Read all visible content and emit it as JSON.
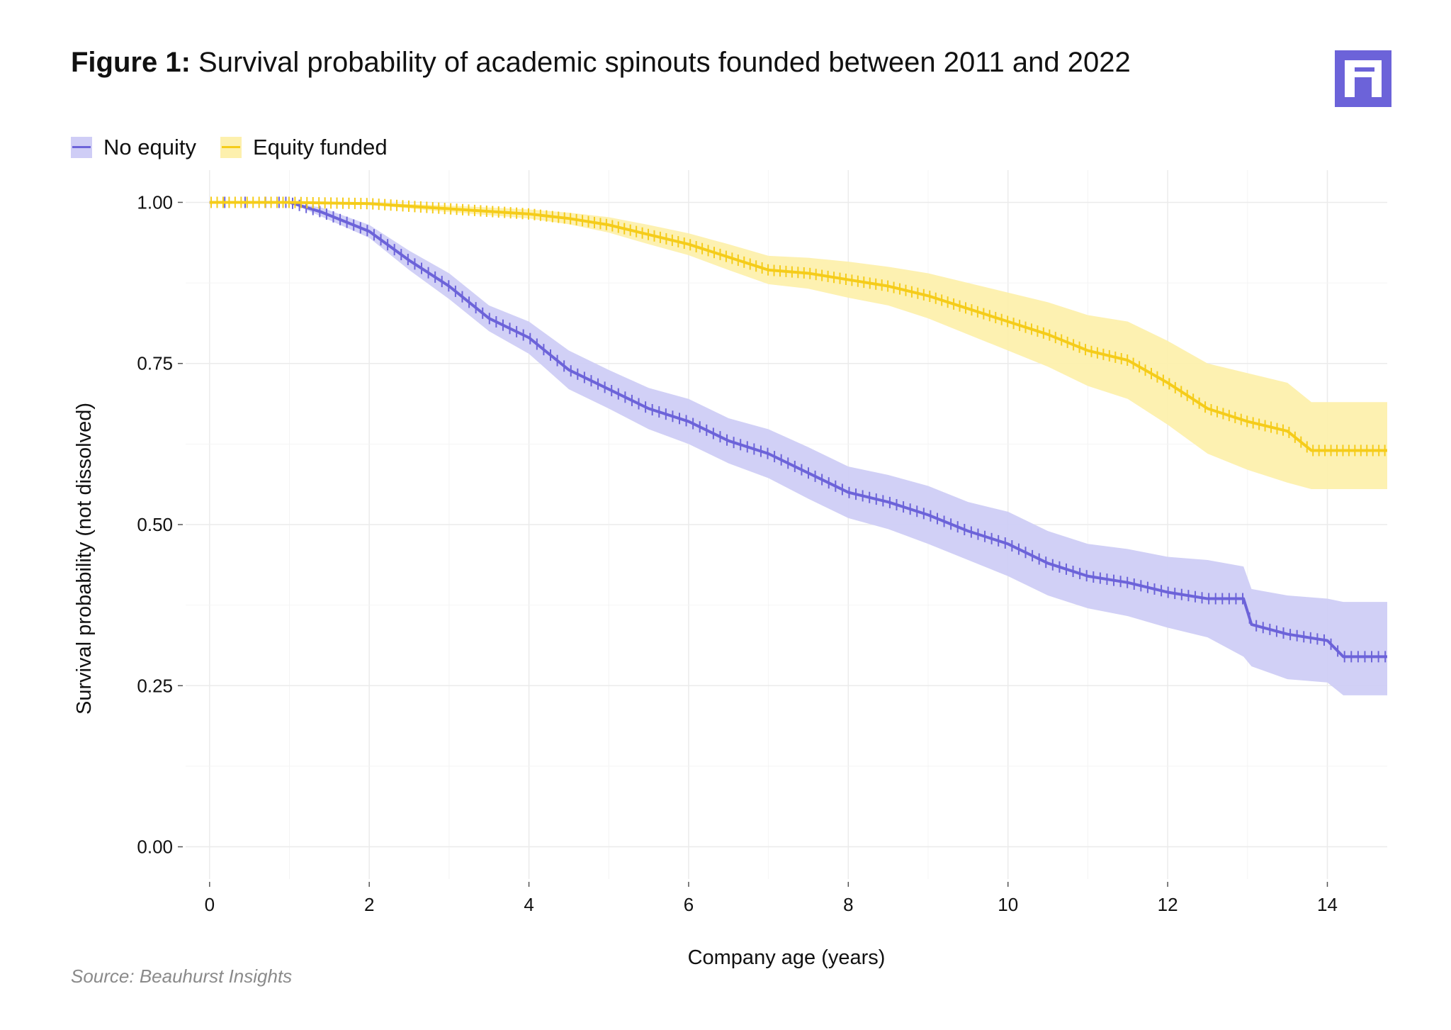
{
  "header": {
    "figure_label": "Figure 1:",
    "title": "Survival probability of academic spinouts founded between 2011 and 2022"
  },
  "logo": {
    "icon": "beauhurst-logo-icon",
    "color": "#6c63d9"
  },
  "source": "Source: Beauhurst Insights",
  "chart_data": {
    "type": "line",
    "title": "Survival probability of academic spinouts founded between 2011 and 2022",
    "xlabel": "Company age (years)",
    "ylabel": "Survival probability (not dissolved)",
    "xlim": [
      -0.3,
      14.75
    ],
    "ylim": [
      -0.05,
      1.05
    ],
    "x_ticks": [
      0,
      2,
      4,
      6,
      8,
      10,
      12,
      14
    ],
    "x_tick_labels": [
      "0",
      "2",
      "4",
      "6",
      "8",
      "10",
      "12",
      "14"
    ],
    "y_ticks": [
      0,
      0.25,
      0.5,
      0.75,
      1.0
    ],
    "y_tick_labels": [
      "0.00",
      "0.25",
      "0.50",
      "0.75",
      "1.00"
    ],
    "grid": true,
    "legend_position": "top-left",
    "series": [
      {
        "name": "No equity",
        "color": "#6c63d9",
        "band_color": "#cfcdf6",
        "x": [
          0,
          1.0,
          1.4,
          2.0,
          2.5,
          3.0,
          3.5,
          4.0,
          4.5,
          5.0,
          5.5,
          6.0,
          6.5,
          7.0,
          7.5,
          8.0,
          8.5,
          9.0,
          9.5,
          10.0,
          10.5,
          11.0,
          11.5,
          12.0,
          12.5,
          12.95,
          13.05,
          13.5,
          14.0,
          14.2,
          14.75
        ],
        "values": [
          1.0,
          1.0,
          0.985,
          0.955,
          0.91,
          0.87,
          0.82,
          0.79,
          0.74,
          0.71,
          0.68,
          0.66,
          0.63,
          0.61,
          0.58,
          0.55,
          0.535,
          0.515,
          0.49,
          0.47,
          0.44,
          0.42,
          0.41,
          0.395,
          0.385,
          0.385,
          0.345,
          0.33,
          0.32,
          0.295,
          0.295
        ],
        "lower": [
          1.0,
          1.0,
          0.978,
          0.945,
          0.895,
          0.85,
          0.8,
          0.765,
          0.71,
          0.68,
          0.648,
          0.625,
          0.595,
          0.572,
          0.54,
          0.51,
          0.493,
          0.47,
          0.445,
          0.42,
          0.39,
          0.37,
          0.358,
          0.34,
          0.325,
          0.295,
          0.28,
          0.26,
          0.255,
          0.235,
          0.235
        ],
        "upper": [
          1.0,
          1.0,
          0.992,
          0.965,
          0.925,
          0.89,
          0.84,
          0.815,
          0.77,
          0.74,
          0.712,
          0.695,
          0.665,
          0.648,
          0.62,
          0.59,
          0.577,
          0.56,
          0.535,
          0.52,
          0.49,
          0.47,
          0.462,
          0.45,
          0.445,
          0.435,
          0.4,
          0.39,
          0.385,
          0.38,
          0.38
        ]
      },
      {
        "name": "Equity funded",
        "color": "#f5cc1a",
        "band_color": "#fdf0ad",
        "x": [
          0,
          1.0,
          2.0,
          3.0,
          4.0,
          4.5,
          5.0,
          5.5,
          6.0,
          6.5,
          7.0,
          7.5,
          8.0,
          8.5,
          9.0,
          9.5,
          10.0,
          10.5,
          11.0,
          11.5,
          12.0,
          12.5,
          13.0,
          13.5,
          13.8,
          14.75
        ],
        "values": [
          1.0,
          1.0,
          0.998,
          0.99,
          0.982,
          0.975,
          0.965,
          0.95,
          0.935,
          0.915,
          0.895,
          0.89,
          0.88,
          0.87,
          0.855,
          0.835,
          0.815,
          0.795,
          0.77,
          0.755,
          0.72,
          0.68,
          0.66,
          0.645,
          0.615,
          0.615
        ],
        "lower": [
          1.0,
          1.0,
          0.996,
          0.985,
          0.975,
          0.966,
          0.953,
          0.935,
          0.918,
          0.895,
          0.873,
          0.866,
          0.852,
          0.84,
          0.82,
          0.795,
          0.77,
          0.745,
          0.715,
          0.695,
          0.655,
          0.61,
          0.585,
          0.565,
          0.555,
          0.555
        ],
        "upper": [
          1.0,
          1.0,
          1.0,
          0.995,
          0.989,
          0.984,
          0.977,
          0.965,
          0.952,
          0.935,
          0.917,
          0.914,
          0.908,
          0.9,
          0.89,
          0.875,
          0.86,
          0.845,
          0.825,
          0.815,
          0.785,
          0.75,
          0.735,
          0.72,
          0.69,
          0.69
        ]
      }
    ]
  }
}
